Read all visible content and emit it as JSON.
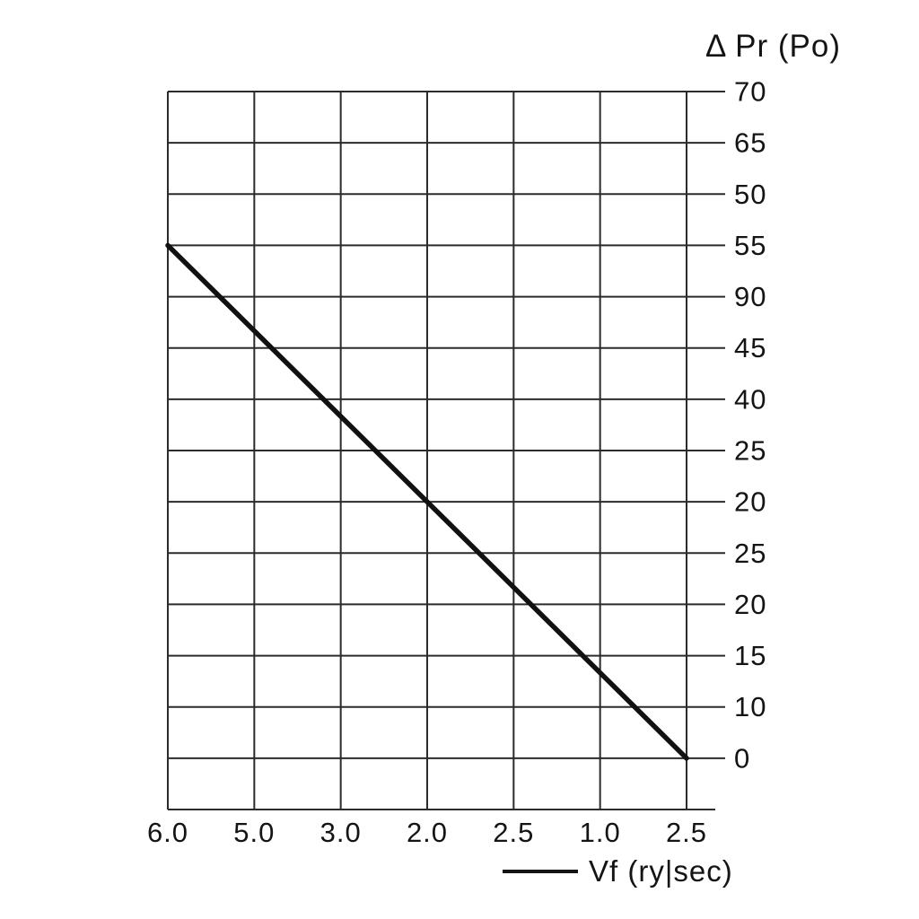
{
  "chart_data": {
    "type": "line",
    "title": "Δ Pr (Po)",
    "xlabel": "",
    "ylabel": "Δ Pr (Po)",
    "grid": "on",
    "x_axis": {
      "tick_labels": [
        "6.0",
        "5.0",
        "3.0",
        "2.0",
        "2.5",
        "1.0",
        "2.5"
      ]
    },
    "y_axis": {
      "side": "right",
      "tick_labels_top_to_bottom": [
        "70",
        "65",
        "50",
        "55",
        "90",
        "45",
        "40",
        "25",
        "20",
        "25",
        "20",
        "15",
        "10",
        "0"
      ]
    },
    "legend": {
      "position": "bottom-right",
      "entries": [
        {
          "label": "Vf (ry|sec)",
          "marker": "line"
        }
      ]
    },
    "series": [
      {
        "name": "Vf (ry|sec)",
        "description": "single straight descending line from top-left to bottom-right of grid",
        "points": [
          {
            "x_col": 0,
            "y_row": 3,
            "x_label": "6.0",
            "y_label": "55"
          },
          {
            "x_col": 6,
            "y_row": 13,
            "x_label": "2.5",
            "y_label": "0"
          }
        ]
      }
    ],
    "colors": {
      "background": "#ffffff",
      "grid": "#2b2b2b",
      "series_line": "#111111",
      "text": "#141414"
    }
  }
}
